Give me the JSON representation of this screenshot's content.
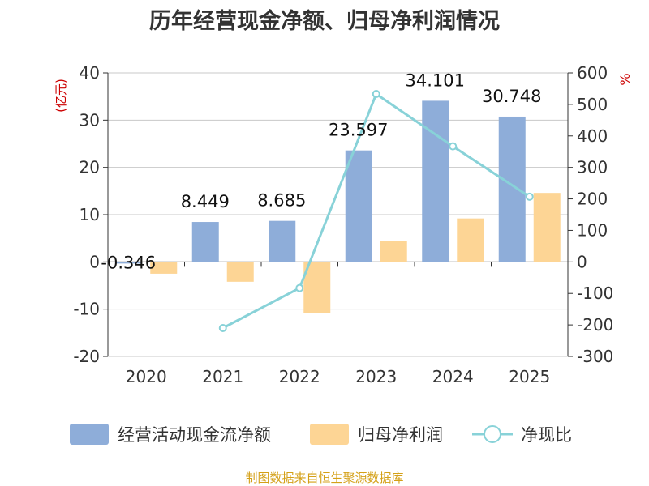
{
  "chart_data": {
    "type": "bar",
    "title": "历年经营现金净额、归母净利润情况",
    "categories": [
      "2020",
      "2021",
      "2022",
      "2023",
      "2024",
      "2025"
    ],
    "y_left": {
      "label": "(亿元)",
      "ylim": [
        -20,
        40
      ],
      "ticks": [
        40,
        30,
        20,
        10,
        0,
        -10,
        -20
      ]
    },
    "y_right": {
      "label": "%",
      "ylim": [
        -300,
        600
      ],
      "ticks": [
        600,
        500,
        400,
        300,
        200,
        100,
        0,
        -100,
        -200,
        -300
      ]
    },
    "series": [
      {
        "name": "经营活动现金流净额",
        "type": "bar",
        "axis": "left",
        "values": [
          -0.346,
          8.449,
          8.685,
          23.597,
          34.101,
          30.748
        ],
        "labels": [
          "-0.346",
          "8.449",
          "8.685",
          "23.597",
          "34.101",
          "30.748"
        ]
      },
      {
        "name": "归母净利润",
        "type": "bar",
        "axis": "left",
        "values": [
          -2.5,
          -4.2,
          -10.8,
          4.4,
          9.2,
          14.6
        ]
      },
      {
        "name": "净现比",
        "type": "line",
        "axis": "right",
        "values": [
          null,
          -210,
          -83,
          533,
          367,
          207
        ]
      }
    ],
    "legend_position": "bottom",
    "source": "制图数据来自恒生聚源数据库"
  },
  "colors": {
    "cash_flow": "#8eadd9",
    "profit": "#fdd595",
    "ratio": "#88d2d8",
    "y_left_label": "#cc0000",
    "y_right_label": "#cc0000"
  }
}
